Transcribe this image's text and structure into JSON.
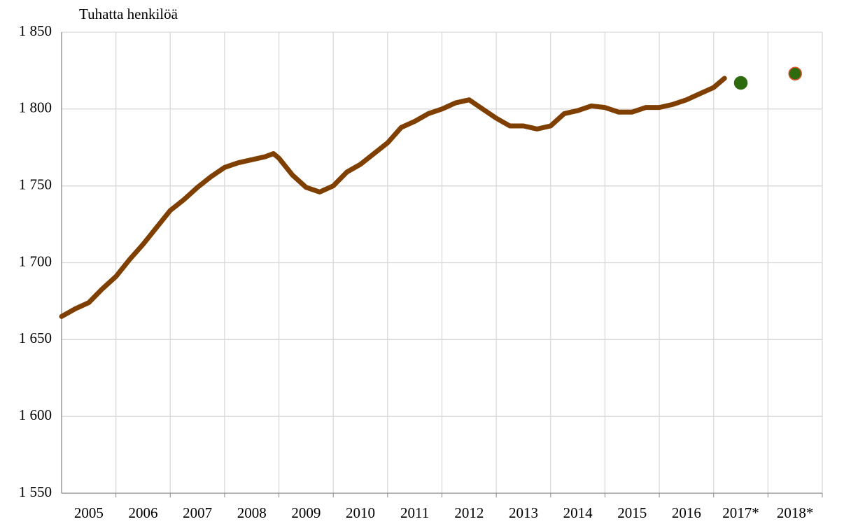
{
  "chart_data": {
    "type": "line",
    "y_label": "Tuhatta henkilöä",
    "categories": [
      "2005",
      "2006",
      "2007",
      "2008",
      "2009",
      "2010",
      "2011",
      "2012",
      "2013",
      "2014",
      "2015",
      "2016",
      "2017*",
      "2018*"
    ],
    "xlim": [
      2005,
      2019
    ],
    "ylim": [
      1550,
      1850
    ],
    "yticks": [
      {
        "value": 1550,
        "label": "1 550"
      },
      {
        "value": 1600,
        "label": "1 600"
      },
      {
        "value": 1650,
        "label": "1 650"
      },
      {
        "value": 1700,
        "label": "1 700"
      },
      {
        "value": 1750,
        "label": "1 750"
      },
      {
        "value": 1800,
        "label": "1 800"
      },
      {
        "value": 1850,
        "label": "1 850"
      }
    ],
    "grid": true,
    "series": [
      {
        "color": "#7f3f00",
        "x": [
          2005,
          2005.25,
          2005.5,
          2005.75,
          2006,
          2006.25,
          2006.5,
          2006.75,
          2007,
          2007.25,
          2007.5,
          2007.75,
          2008,
          2008.25,
          2008.5,
          2008.75,
          2008.9,
          2009,
          2009.25,
          2009.5,
          2009.75,
          2010,
          2010.25,
          2010.5,
          2010.75,
          2011,
          2011.25,
          2011.5,
          2011.75,
          2012,
          2012.25,
          2012.5,
          2012.75,
          2013,
          2013.25,
          2013.5,
          2013.75,
          2014,
          2014.25,
          2014.5,
          2014.75,
          2015,
          2015.25,
          2015.5,
          2015.75,
          2016,
          2016.25,
          2016.5,
          2016.75,
          2017,
          2017.2
        ],
        "values": [
          1665,
          1670,
          1674,
          1683,
          1691,
          1702,
          1712,
          1723,
          1734,
          1741,
          1749,
          1756,
          1762,
          1765,
          1767,
          1769,
          1771,
          1768,
          1757,
          1749,
          1746,
          1750,
          1759,
          1764,
          1771,
          1778,
          1788,
          1792,
          1797,
          1800,
          1804,
          1806,
          1800,
          1794,
          1789,
          1789,
          1787,
          1789,
          1797,
          1799,
          1802,
          1801,
          1798,
          1798,
          1801,
          1801,
          1803,
          1806,
          1810,
          1814,
          1820
        ]
      },
      {
        "type": "scatter",
        "color": "#2e6b0e",
        "x": [
          2017.5
        ],
        "values": [
          1817
        ]
      },
      {
        "type": "scatter",
        "color": "#2e6b0e",
        "edge_color": "#e0502a",
        "x": [
          2018.5
        ],
        "values": [
          1823
        ]
      }
    ]
  }
}
